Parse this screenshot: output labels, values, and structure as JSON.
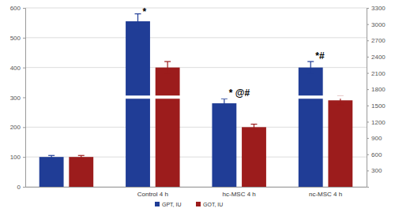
{
  "chart_data": {
    "type": "bar",
    "categories": [
      null,
      "Control 4 h",
      "hc-MSC 4 h",
      "nc-MSC 4 h"
    ],
    "series": [
      {
        "name": "GPT, IU",
        "color": "#203d96",
        "values": [
          100,
          555,
          280,
          400
        ],
        "errors": [
          5,
          25,
          15,
          20
        ],
        "annotations": [
          null,
          "*",
          "* @#",
          "*#"
        ]
      },
      {
        "name": "GOT, IU",
        "color": "#9c1c1c",
        "values": [
          100,
          400,
          200,
          290
        ],
        "errors": [
          5,
          20,
          10,
          15
        ]
      }
    ],
    "ylim": [
      0,
      600
    ],
    "yticks": [
      0,
      100,
      200,
      300,
      400,
      500,
      600
    ],
    "y2lim": [
      0,
      3300
    ],
    "y2ticks": [
      300,
      600,
      900,
      1200,
      1500,
      1800,
      2100,
      2400,
      2700,
      3000,
      3300
    ],
    "grid": true,
    "legend": "bottom"
  }
}
